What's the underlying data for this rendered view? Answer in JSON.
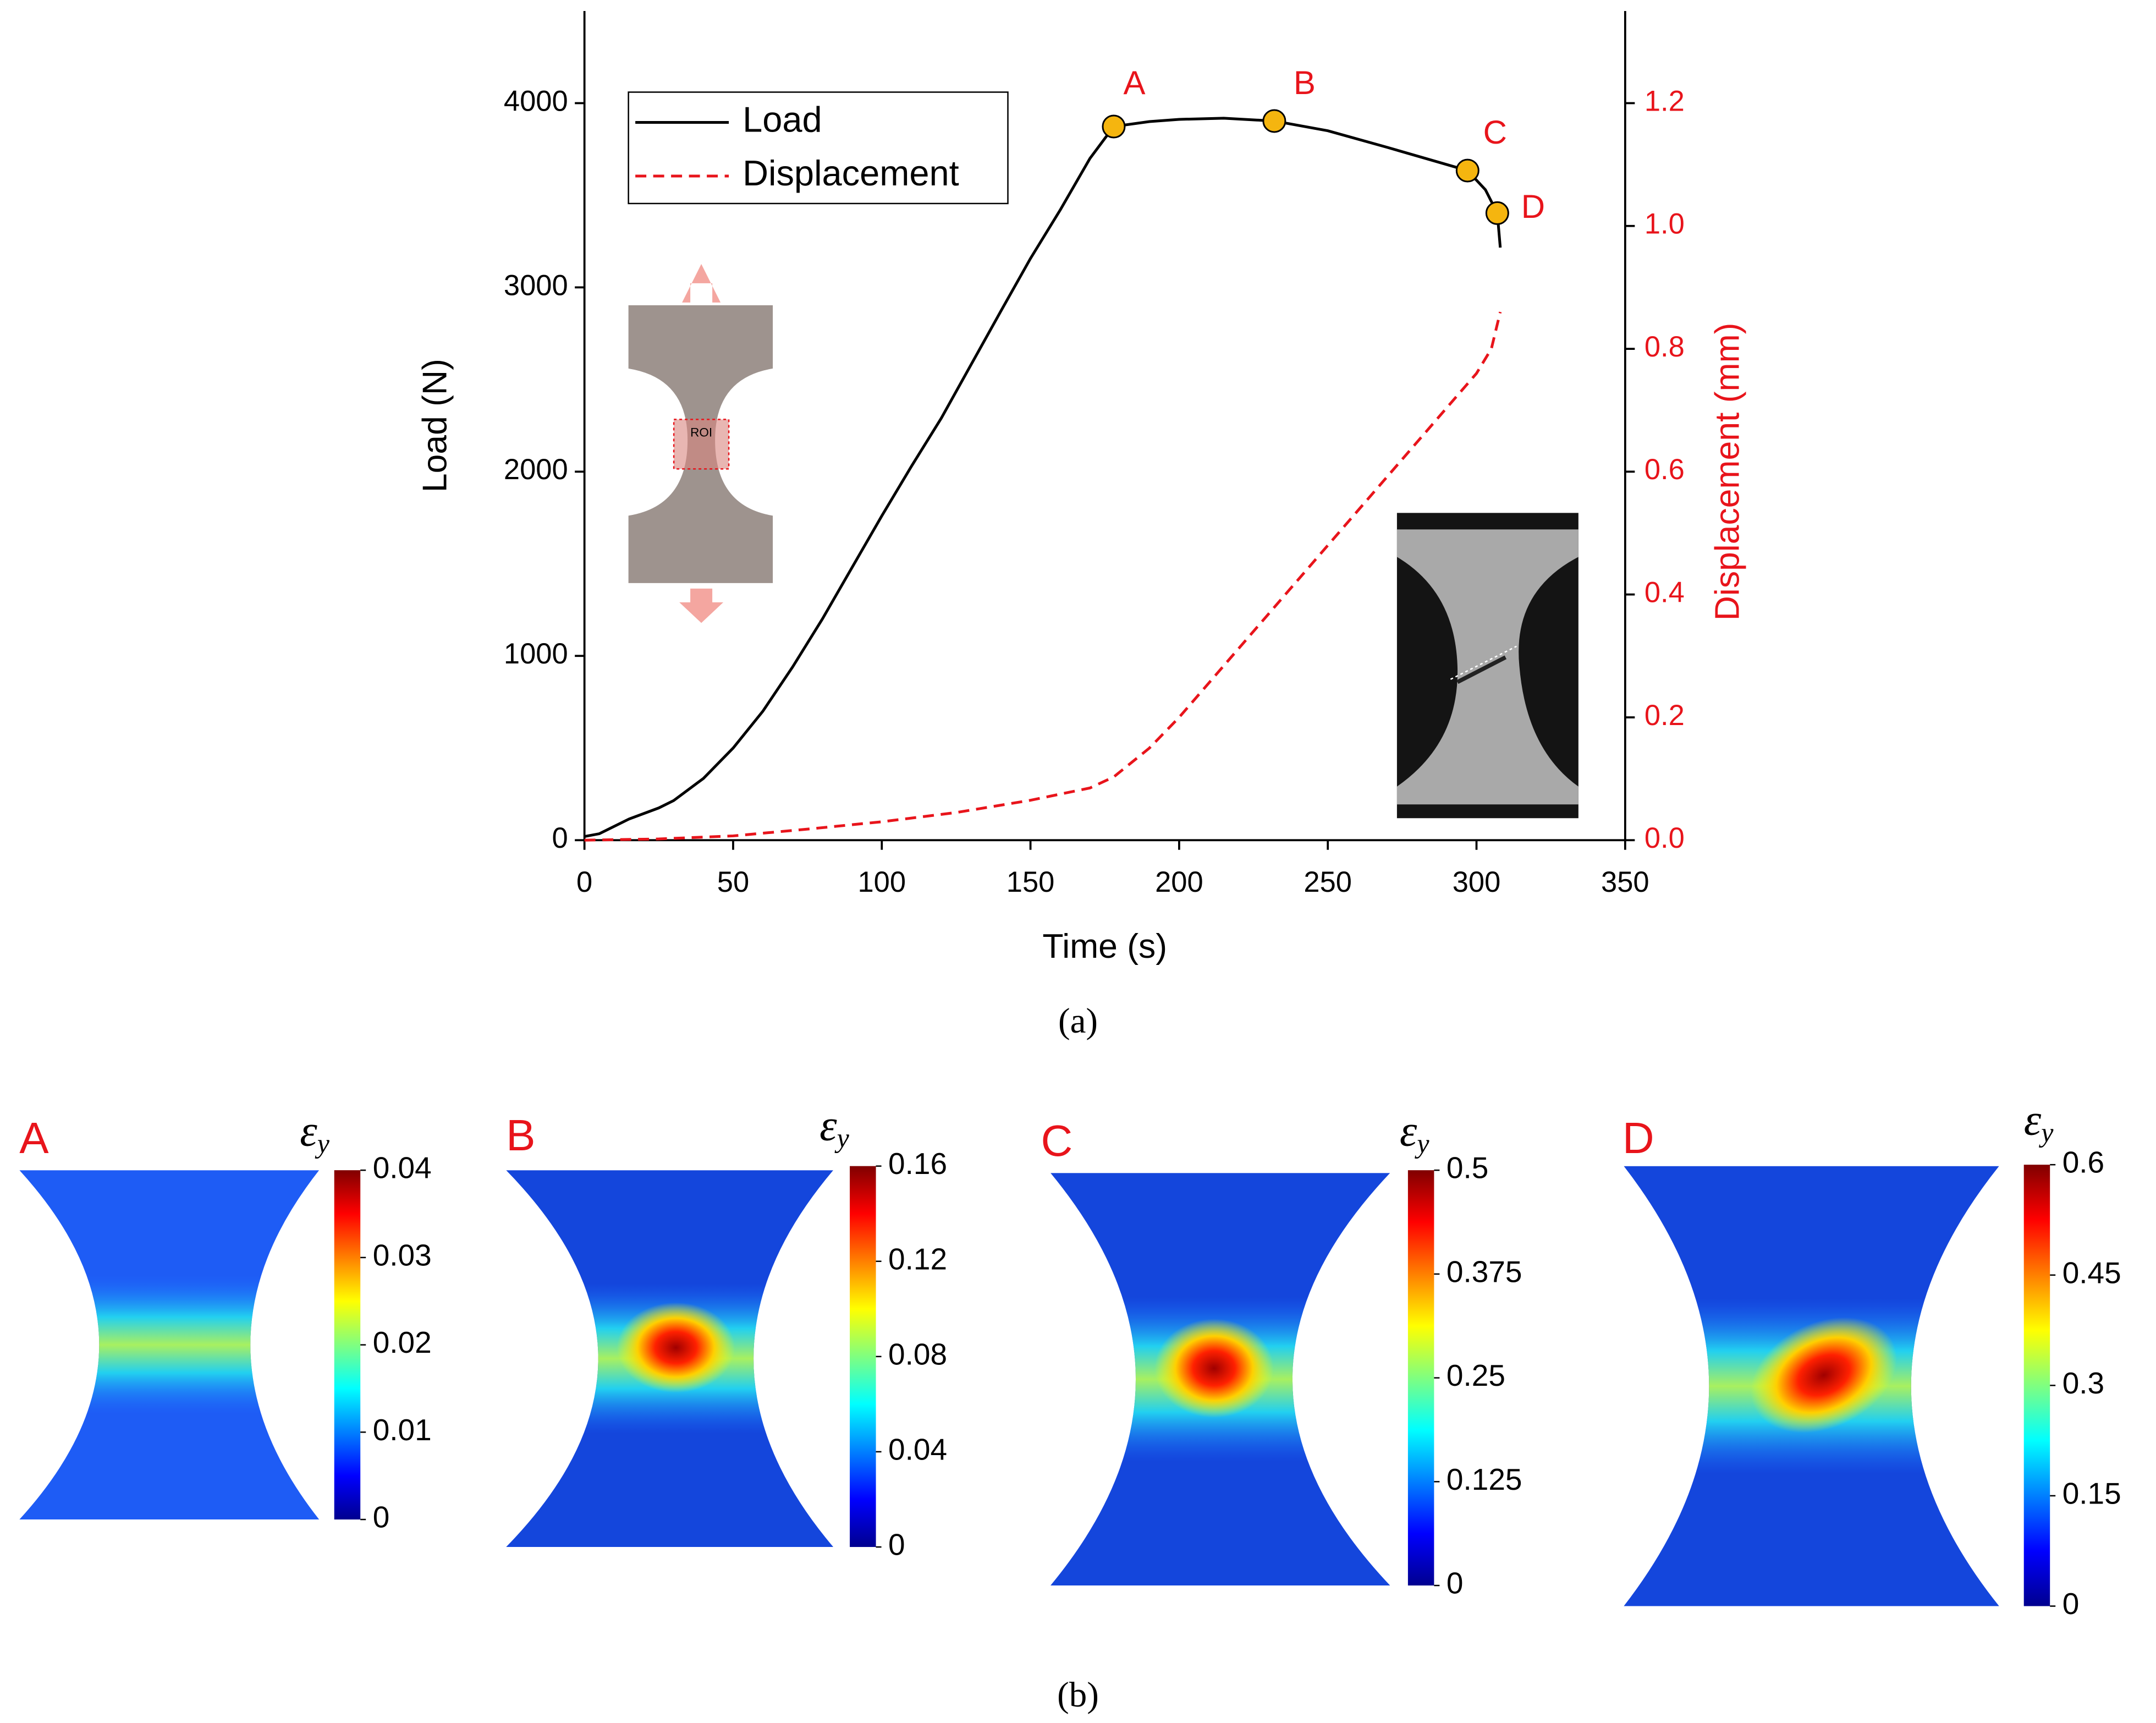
{
  "chart_data": [
    {
      "type": "line",
      "xlabel": "Time (s)",
      "ylabel": "Load (N)",
      "y2label": "Displacement (mm)",
      "xlim": [
        0,
        350
      ],
      "xticks": [
        0,
        50,
        100,
        150,
        200,
        250,
        300,
        350
      ],
      "ylim": [
        0,
        4500
      ],
      "yticks": [
        0,
        1000,
        2000,
        3000,
        4000
      ],
      "y2lim": [
        0,
        1.35
      ],
      "y2ticks": [
        {
          "value": 0,
          "label": "0.0"
        },
        0.2,
        0.4,
        0.6,
        0.8,
        {
          "value": 1,
          "label": "1.0"
        },
        1.2
      ],
      "legend": "upper left",
      "series": [
        {
          "name": "Load",
          "color": "#000000",
          "dash": "solid",
          "x": [
            0,
            5,
            10,
            15,
            25,
            30,
            40,
            50,
            60,
            70,
            80,
            90,
            100,
            110,
            120,
            130,
            140,
            150,
            160,
            170,
            178,
            190,
            200,
            215,
            232,
            250,
            270,
            285,
            297,
            303,
            307,
            308
          ],
          "values": [
            20,
            35,
            75,
            115,
            175,
            215,
            335,
            500,
            700,
            940,
            1200,
            1480,
            1760,
            2030,
            2290,
            2580,
            2870,
            3157,
            3420,
            3700,
            3873,
            3900,
            3912,
            3918,
            3903,
            3850,
            3760,
            3690,
            3634,
            3530,
            3403,
            3216
          ]
        },
        {
          "name": "Displacement",
          "color": "#e8141b",
          "dash": "dashed",
          "axis": "y2",
          "x": [
            0,
            25,
            50,
            75,
            100,
            125,
            150,
            170,
            178,
            190,
            200,
            225,
            250,
            275,
            300,
            305,
            308
          ],
          "values": [
            0,
            0.002,
            0.007,
            0.018,
            0.03,
            0.045,
            0.065,
            0.085,
            0.103,
            0.15,
            0.2,
            0.34,
            0.48,
            0.62,
            0.76,
            0.8,
            0.86
          ]
        }
      ],
      "points": {
        "labels": [
          "A",
          "B",
          "C",
          "D"
        ],
        "x": [
          178,
          232,
          297,
          307
        ],
        "values": [
          3873,
          3903,
          3634,
          3403
        ],
        "color": "#f5b50f",
        "label_color": "#e8141b"
      },
      "inset_label": "ROI",
      "caption": "(a)"
    },
    {
      "type": "heatmap",
      "title": "A",
      "colorbar_symbol": "ε",
      "colorbar_subscript": "y",
      "clim": [
        0,
        0.04
      ],
      "cticks": [
        0,
        0.01,
        0.02,
        0.03,
        0.04
      ]
    },
    {
      "type": "heatmap",
      "title": "B",
      "colorbar_symbol": "ε",
      "colorbar_subscript": "y",
      "clim": [
        0,
        0.16
      ],
      "cticks": [
        0,
        0.04,
        0.08,
        0.12,
        0.16
      ]
    },
    {
      "type": "heatmap",
      "title": "C",
      "colorbar_symbol": "ε",
      "colorbar_subscript": "y",
      "clim": [
        0,
        0.5
      ],
      "cticks": [
        0,
        0.125,
        0.25,
        0.375,
        0.5
      ]
    },
    {
      "type": "heatmap",
      "title": "D",
      "colorbar_symbol": "ε",
      "colorbar_subscript": "y",
      "clim": [
        0,
        0.6
      ],
      "cticks": [
        0,
        0.15,
        0.3,
        0.45,
        0.6
      ]
    }
  ],
  "caption": "(b)"
}
